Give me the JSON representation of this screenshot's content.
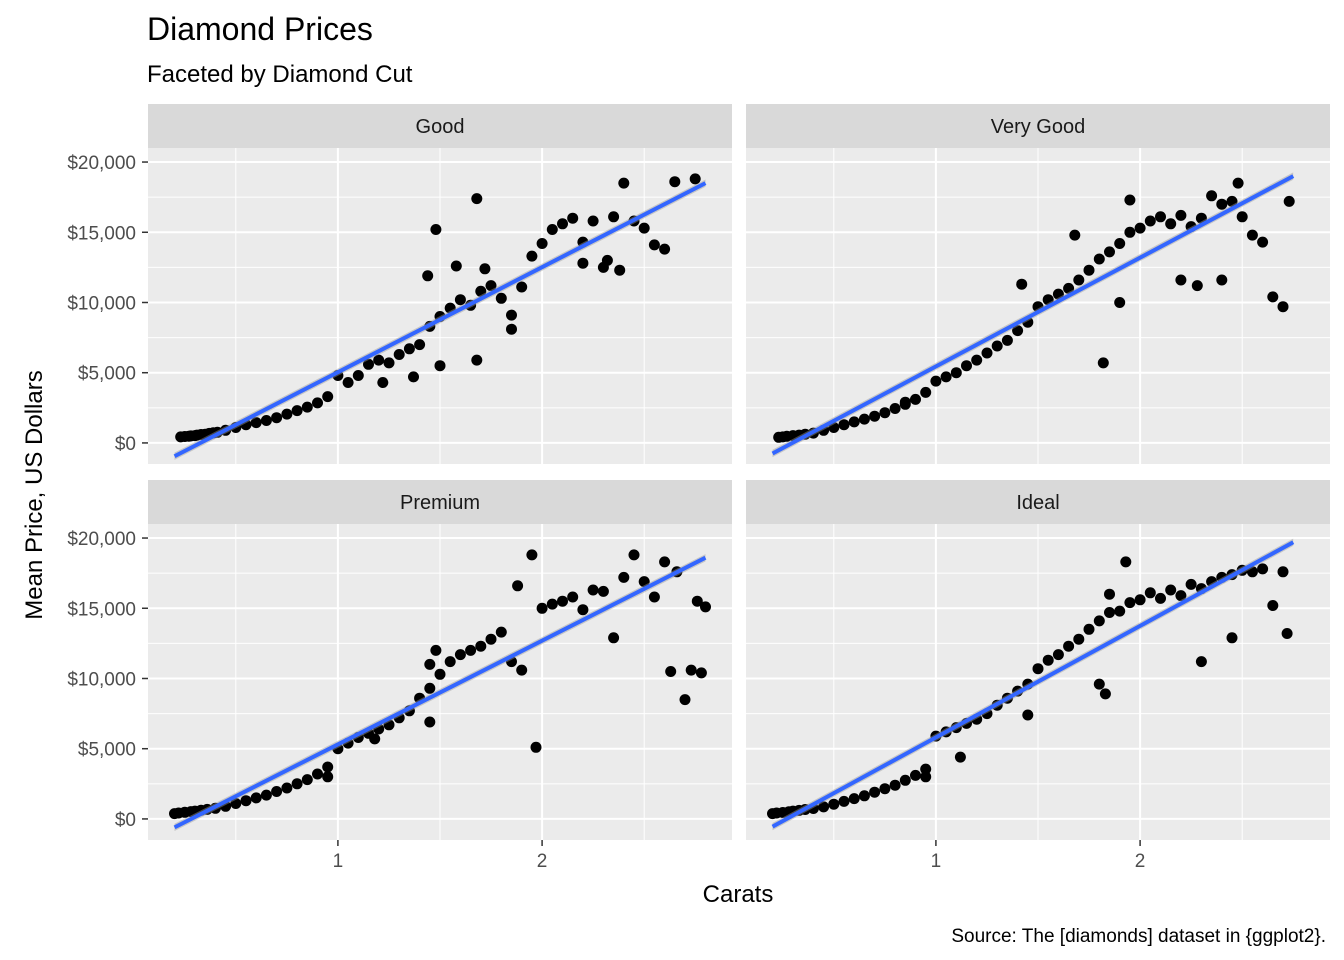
{
  "chart_data": {
    "type": "scatter",
    "title": "Diamond Prices",
    "subtitle": "Faceted by Diamond Cut",
    "xlabel": "Carats",
    "ylabel": "Mean Price, US Dollars",
    "caption": "Source: The [diamonds] dataset in {ggplot2}.",
    "xlim": [
      0.07,
      2.93
    ],
    "ylim": [
      -1500,
      21000
    ],
    "x_ticks": [
      1,
      2
    ],
    "x_tick_labels": [
      "1",
      "2"
    ],
    "y_ticks": [
      0,
      5000,
      10000,
      15000,
      20000
    ],
    "y_tick_labels": [
      "$0",
      "$5,000",
      "$10,000",
      "$15,000",
      "$20,000"
    ],
    "grid": true,
    "trend": "linear fit with confidence band",
    "colors": {
      "points": "#000000",
      "fit_line": "#3366FF",
      "panel": "#EBEBEB",
      "strip": "#D9D9D9"
    },
    "facets": [
      {
        "name": "Good",
        "fit": [
          [
            0.2,
            -950
          ],
          [
            2.8,
            18500
          ]
        ],
        "points": [
          [
            0.23,
            430
          ],
          [
            0.25,
            460
          ],
          [
            0.27,
            480
          ],
          [
            0.28,
            500
          ],
          [
            0.3,
            520
          ],
          [
            0.31,
            560
          ],
          [
            0.33,
            600
          ],
          [
            0.35,
            620
          ],
          [
            0.37,
            680
          ],
          [
            0.39,
            720
          ],
          [
            0.41,
            760
          ],
          [
            0.45,
            900
          ],
          [
            0.5,
            1100
          ],
          [
            0.55,
            1300
          ],
          [
            0.6,
            1450
          ],
          [
            0.65,
            1600
          ],
          [
            0.7,
            1800
          ],
          [
            0.75,
            2050
          ],
          [
            0.8,
            2300
          ],
          [
            0.85,
            2550
          ],
          [
            0.9,
            2850
          ],
          [
            0.95,
            3300
          ],
          [
            1.0,
            4800
          ],
          [
            1.05,
            4300
          ],
          [
            1.1,
            4800
          ],
          [
            1.15,
            5600
          ],
          [
            1.2,
            5900
          ],
          [
            1.25,
            5700
          ],
          [
            1.3,
            6300
          ],
          [
            1.35,
            6700
          ],
          [
            1.4,
            7000
          ],
          [
            1.45,
            8300
          ],
          [
            1.5,
            9000
          ],
          [
            1.55,
            9600
          ],
          [
            1.6,
            10200
          ],
          [
            1.65,
            9800
          ],
          [
            1.7,
            10800
          ],
          [
            1.75,
            11200
          ],
          [
            1.8,
            10300
          ],
          [
            1.85,
            9100
          ],
          [
            1.9,
            11100
          ],
          [
            1.44,
            11900
          ],
          [
            1.48,
            15200
          ],
          [
            1.58,
            12600
          ],
          [
            1.68,
            17400
          ],
          [
            1.72,
            12400
          ],
          [
            1.68,
            5900
          ],
          [
            1.5,
            5500
          ],
          [
            1.37,
            4700
          ],
          [
            1.22,
            4300
          ],
          [
            1.85,
            8100
          ],
          [
            1.95,
            13300
          ],
          [
            2.0,
            14200
          ],
          [
            2.05,
            15200
          ],
          [
            2.1,
            15600
          ],
          [
            2.15,
            16000
          ],
          [
            2.2,
            14300
          ],
          [
            2.25,
            15800
          ],
          [
            2.3,
            12500
          ],
          [
            2.35,
            16100
          ],
          [
            2.4,
            18500
          ],
          [
            2.45,
            15800
          ],
          [
            2.5,
            15300
          ],
          [
            2.55,
            14100
          ],
          [
            2.6,
            13800
          ],
          [
            2.65,
            18600
          ],
          [
            2.75,
            18800
          ],
          [
            2.2,
            12800
          ],
          [
            2.38,
            12300
          ],
          [
            2.32,
            13000
          ]
        ]
      },
      {
        "name": "Very Good",
        "fit": [
          [
            0.2,
            -750
          ],
          [
            2.75,
            19000
          ]
        ],
        "points": [
          [
            0.23,
            400
          ],
          [
            0.25,
            430
          ],
          [
            0.27,
            470
          ],
          [
            0.3,
            520
          ],
          [
            0.33,
            560
          ],
          [
            0.36,
            620
          ],
          [
            0.4,
            700
          ],
          [
            0.45,
            900
          ],
          [
            0.5,
            1100
          ],
          [
            0.55,
            1300
          ],
          [
            0.6,
            1500
          ],
          [
            0.65,
            1700
          ],
          [
            0.7,
            1900
          ],
          [
            0.75,
            2150
          ],
          [
            0.8,
            2450
          ],
          [
            0.85,
            2750
          ],
          [
            0.9,
            3100
          ],
          [
            0.95,
            3600
          ],
          [
            1.0,
            4400
          ],
          [
            1.05,
            4700
          ],
          [
            1.1,
            5000
          ],
          [
            1.15,
            5500
          ],
          [
            1.2,
            5900
          ],
          [
            1.25,
            6400
          ],
          [
            1.3,
            6900
          ],
          [
            1.35,
            7300
          ],
          [
            1.4,
            8000
          ],
          [
            1.45,
            8600
          ],
          [
            1.5,
            9700
          ],
          [
            1.55,
            10200
          ],
          [
            1.6,
            10600
          ],
          [
            1.65,
            11000
          ],
          [
            1.7,
            11600
          ],
          [
            1.75,
            12300
          ],
          [
            1.8,
            13100
          ],
          [
            1.85,
            13600
          ],
          [
            1.9,
            14200
          ],
          [
            1.95,
            15000
          ],
          [
            2.0,
            15300
          ],
          [
            2.05,
            15800
          ],
          [
            2.1,
            16100
          ],
          [
            2.15,
            15600
          ],
          [
            2.2,
            16200
          ],
          [
            2.25,
            15400
          ],
          [
            2.3,
            16000
          ],
          [
            2.35,
            17600
          ],
          [
            2.4,
            17000
          ],
          [
            2.45,
            17200
          ],
          [
            2.5,
            16100
          ],
          [
            2.55,
            14800
          ],
          [
            2.6,
            14300
          ],
          [
            2.65,
            10400
          ],
          [
            2.7,
            9700
          ],
          [
            2.73,
            17200
          ],
          [
            1.42,
            11300
          ],
          [
            1.68,
            14800
          ],
          [
            1.82,
            5700
          ],
          [
            1.95,
            17300
          ],
          [
            2.2,
            11600
          ],
          [
            2.28,
            11200
          ],
          [
            2.4,
            11600
          ],
          [
            2.48,
            18500
          ],
          [
            1.9,
            10000
          ],
          [
            0.85,
            2900
          ]
        ]
      },
      {
        "name": "Premium",
        "fit": [
          [
            0.2,
            -600
          ],
          [
            2.8,
            18600
          ]
        ],
        "points": [
          [
            0.2,
            380
          ],
          [
            0.22,
            420
          ],
          [
            0.25,
            470
          ],
          [
            0.28,
            520
          ],
          [
            0.3,
            560
          ],
          [
            0.33,
            620
          ],
          [
            0.36,
            680
          ],
          [
            0.4,
            760
          ],
          [
            0.45,
            900
          ],
          [
            0.5,
            1100
          ],
          [
            0.55,
            1300
          ],
          [
            0.6,
            1500
          ],
          [
            0.65,
            1700
          ],
          [
            0.7,
            1950
          ],
          [
            0.75,
            2200
          ],
          [
            0.8,
            2500
          ],
          [
            0.85,
            2800
          ],
          [
            0.9,
            3200
          ],
          [
            0.95,
            3700
          ],
          [
            1.0,
            5000
          ],
          [
            1.05,
            5400
          ],
          [
            1.1,
            5800
          ],
          [
            1.15,
            6100
          ],
          [
            1.2,
            6400
          ],
          [
            1.25,
            6700
          ],
          [
            1.3,
            7200
          ],
          [
            1.35,
            7700
          ],
          [
            1.4,
            8600
          ],
          [
            1.45,
            9300
          ],
          [
            1.5,
            10300
          ],
          [
            1.55,
            11200
          ],
          [
            1.6,
            11700
          ],
          [
            1.65,
            12000
          ],
          [
            1.7,
            12300
          ],
          [
            1.75,
            12800
          ],
          [
            1.8,
            13300
          ],
          [
            1.85,
            11200
          ],
          [
            1.9,
            10600
          ],
          [
            1.45,
            11000
          ],
          [
            1.48,
            12000
          ],
          [
            1.45,
            6900
          ],
          [
            1.97,
            5100
          ],
          [
            1.88,
            16600
          ],
          [
            1.95,
            18800
          ],
          [
            2.0,
            15000
          ],
          [
            2.05,
            15300
          ],
          [
            2.1,
            15500
          ],
          [
            2.15,
            15800
          ],
          [
            2.2,
            14900
          ],
          [
            2.25,
            16300
          ],
          [
            2.3,
            16200
          ],
          [
            2.35,
            12900
          ],
          [
            2.4,
            17200
          ],
          [
            2.45,
            18800
          ],
          [
            2.5,
            16900
          ],
          [
            2.55,
            15800
          ],
          [
            2.6,
            18300
          ],
          [
            2.63,
            10500
          ],
          [
            2.66,
            17600
          ],
          [
            2.7,
            8500
          ],
          [
            2.73,
            10600
          ],
          [
            2.76,
            15500
          ],
          [
            2.8,
            15100
          ],
          [
            2.78,
            10400
          ],
          [
            0.95,
            3000
          ],
          [
            1.18,
            5700
          ]
        ]
      },
      {
        "name": "Ideal",
        "fit": [
          [
            0.2,
            -550
          ],
          [
            2.75,
            19700
          ]
        ],
        "points": [
          [
            0.2,
            380
          ],
          [
            0.22,
            420
          ],
          [
            0.25,
            460
          ],
          [
            0.28,
            510
          ],
          [
            0.3,
            560
          ],
          [
            0.33,
            610
          ],
          [
            0.36,
            670
          ],
          [
            0.4,
            740
          ],
          [
            0.45,
            860
          ],
          [
            0.5,
            1050
          ],
          [
            0.55,
            1250
          ],
          [
            0.6,
            1450
          ],
          [
            0.65,
            1650
          ],
          [
            0.7,
            1900
          ],
          [
            0.75,
            2150
          ],
          [
            0.8,
            2400
          ],
          [
            0.85,
            2750
          ],
          [
            0.9,
            3100
          ],
          [
            0.95,
            3550
          ],
          [
            1.0,
            5900
          ],
          [
            1.05,
            6200
          ],
          [
            1.1,
            6500
          ],
          [
            1.15,
            6800
          ],
          [
            1.2,
            7100
          ],
          [
            1.25,
            7500
          ],
          [
            1.3,
            8100
          ],
          [
            1.35,
            8600
          ],
          [
            1.4,
            9100
          ],
          [
            1.45,
            9600
          ],
          [
            1.5,
            10700
          ],
          [
            1.55,
            11300
          ],
          [
            1.6,
            11700
          ],
          [
            1.65,
            12300
          ],
          [
            1.7,
            12800
          ],
          [
            1.75,
            13500
          ],
          [
            1.8,
            14100
          ],
          [
            1.85,
            14700
          ],
          [
            1.9,
            14800
          ],
          [
            1.95,
            15400
          ],
          [
            2.0,
            15600
          ],
          [
            2.05,
            16100
          ],
          [
            2.1,
            15700
          ],
          [
            2.15,
            16300
          ],
          [
            2.2,
            15900
          ],
          [
            2.25,
            16700
          ],
          [
            2.3,
            16400
          ],
          [
            2.35,
            16900
          ],
          [
            2.4,
            17200
          ],
          [
            2.45,
            17400
          ],
          [
            2.5,
            17700
          ],
          [
            2.55,
            17600
          ],
          [
            2.6,
            17800
          ],
          [
            2.65,
            15200
          ],
          [
            2.7,
            17600
          ],
          [
            2.72,
            13200
          ],
          [
            1.93,
            18300
          ],
          [
            1.83,
            8900
          ],
          [
            1.85,
            16000
          ],
          [
            2.3,
            11200
          ],
          [
            2.45,
            12900
          ],
          [
            1.45,
            7400
          ],
          [
            1.8,
            9600
          ],
          [
            0.95,
            3000
          ],
          [
            1.12,
            4400
          ]
        ]
      }
    ]
  }
}
